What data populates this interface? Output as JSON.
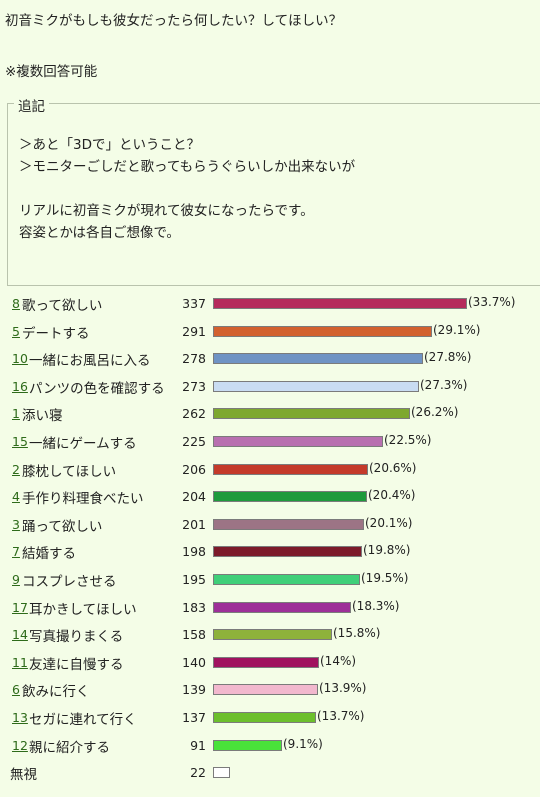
{
  "question": {
    "title": "初音ミクがもしも彼女だったら何したい？してほしい？",
    "note": "※複数回答可能"
  },
  "addendum": {
    "legend": "追記",
    "lines": [
      "＞あと「3Dで」ということ？",
      "＞モニターごしだと歌ってもらうぐらいしか出来ないが",
      "",
      "リアルに初音ミクが現れて彼女になったらです。",
      "容姿とかは各自ご想像で。"
    ]
  },
  "chart_data": {
    "type": "bar",
    "orientation": "horizontal",
    "max_percent": 33.7,
    "rows": [
      {
        "rank": "8",
        "label": "歌って欲しい",
        "count": 337,
        "percent": 33.7,
        "pct_label": "(33.7%)",
        "color": "#b52a5c"
      },
      {
        "rank": "5",
        "label": "デートする",
        "count": 291,
        "percent": 29.1,
        "pct_label": "(29.1%)",
        "color": "#d2612f"
      },
      {
        "rank": "10",
        "label": "一緒にお風呂に入る",
        "count": 278,
        "percent": 27.8,
        "pct_label": "(27.8%)",
        "color": "#6f93c4"
      },
      {
        "rank": "16",
        "label": "パンツの色を確認する",
        "count": 273,
        "percent": 27.3,
        "pct_label": "(27.3%)",
        "color": "#c9dcf2"
      },
      {
        "rank": "1",
        "label": "添い寝",
        "count": 262,
        "percent": 26.2,
        "pct_label": "(26.2%)",
        "color": "#7ea82f"
      },
      {
        "rank": "15",
        "label": "一緒にゲームする",
        "count": 225,
        "percent": 22.5,
        "pct_label": "(22.5%)",
        "color": "#b86fb0"
      },
      {
        "rank": "2",
        "label": "膝枕してほしい",
        "count": 206,
        "percent": 20.6,
        "pct_label": "(20.6%)",
        "color": "#c43a2a"
      },
      {
        "rank": "4",
        "label": "手作り料理食べたい",
        "count": 204,
        "percent": 20.4,
        "pct_label": "(20.4%)",
        "color": "#1e9a3c"
      },
      {
        "rank": "3",
        "label": "踊って欲しい",
        "count": 201,
        "percent": 20.1,
        "pct_label": "(20.1%)",
        "color": "#9c7485"
      },
      {
        "rank": "7",
        "label": "結婚する",
        "count": 198,
        "percent": 19.8,
        "pct_label": "(19.8%)",
        "color": "#7c1a2a"
      },
      {
        "rank": "9",
        "label": "コスプレさせる",
        "count": 195,
        "percent": 19.5,
        "pct_label": "(19.5%)",
        "color": "#3fcf79"
      },
      {
        "rank": "17",
        "label": "耳かきしてほしい",
        "count": 183,
        "percent": 18.3,
        "pct_label": "(18.3%)",
        "color": "#9d2f98"
      },
      {
        "rank": "14",
        "label": "写真撮りまくる",
        "count": 158,
        "percent": 15.8,
        "pct_label": "(15.8%)",
        "color": "#8eb23b"
      },
      {
        "rank": "11",
        "label": "友達に自慢する",
        "count": 140,
        "percent": 14,
        "pct_label": "(14%)",
        "color": "#a0125f"
      },
      {
        "rank": "6",
        "label": "飲みに行く",
        "count": 139,
        "percent": 13.9,
        "pct_label": "(13.9%)",
        "color": "#f2b8ce"
      },
      {
        "rank": "13",
        "label": "セガに連れて行く",
        "count": 137,
        "percent": 13.7,
        "pct_label": "(13.7%)",
        "color": "#6cbf2c"
      },
      {
        "rank": "12",
        "label": "親に紹介する",
        "count": 91,
        "percent": 9.1,
        "pct_label": "(9.1%)",
        "color": "#49e23a"
      },
      {
        "rank": "",
        "label": "無視",
        "count": 22,
        "percent": null,
        "pct_label": "",
        "color": "#ffffff"
      }
    ]
  }
}
